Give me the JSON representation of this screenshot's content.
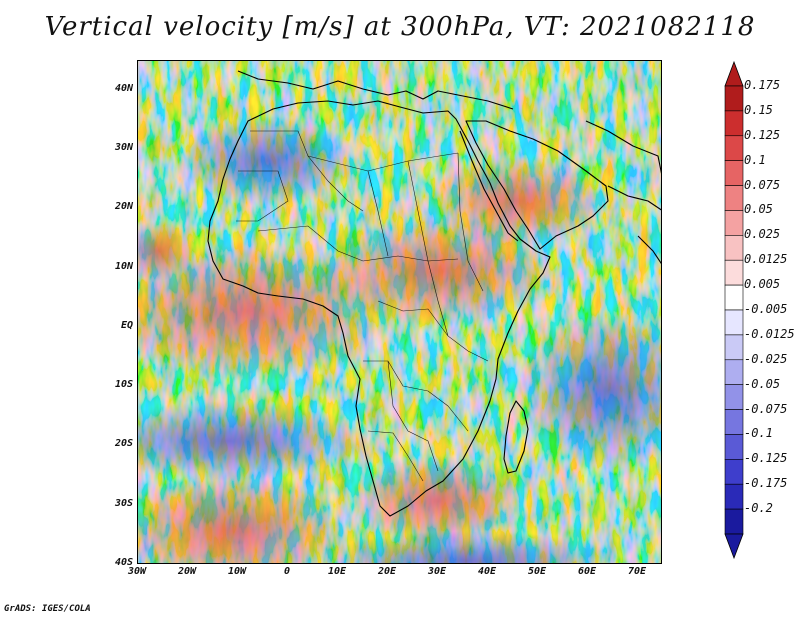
{
  "title": "Vertical velocity [m/s] at 300hPa, VT: 2021082118",
  "credit": "GrADS: IGES/COLA",
  "map": {
    "lat_range": [
      -40,
      45
    ],
    "lon_range": [
      -30,
      75
    ],
    "lat_ticks": [
      "40N",
      "30N",
      "20N",
      "10N",
      "EQ",
      "10S",
      "20S",
      "30S",
      "40S"
    ],
    "lat_tick_values": [
      40,
      30,
      20,
      10,
      0,
      -10,
      -20,
      -30,
      -40
    ],
    "lon_ticks": [
      "30W",
      "20W",
      "10W",
      "0",
      "10E",
      "20E",
      "30E",
      "40E",
      "50E",
      "60E",
      "70E"
    ],
    "lon_tick_values": [
      -30,
      -20,
      -10,
      0,
      10,
      20,
      30,
      40,
      50,
      60,
      70
    ]
  },
  "colorbar": {
    "labels": [
      "0.175",
      "0.15",
      "0.125",
      "0.1",
      "0.075",
      "0.05",
      "0.025",
      "0.0125",
      "0.005",
      "-0.005",
      "-0.0125",
      "-0.025",
      "-0.05",
      "-0.075",
      "-0.1",
      "-0.125",
      "-0.175",
      "-0.2"
    ],
    "colors": [
      "#b01c1c",
      "#cc2e2e",
      "#dc4848",
      "#e66464",
      "#ee8282",
      "#f4a2a2",
      "#f8c2c2",
      "#fcdcdc",
      "#ffffff",
      "#e6e6ff",
      "#cacaf6",
      "#aeaef0",
      "#9292e8",
      "#7676e0",
      "#5a5ad6",
      "#3e3ecc",
      "#2a2ab8",
      "#1a1a9e"
    ],
    "top_color": "#b01c1c",
    "bottom_color": "#1a1a9e"
  }
}
